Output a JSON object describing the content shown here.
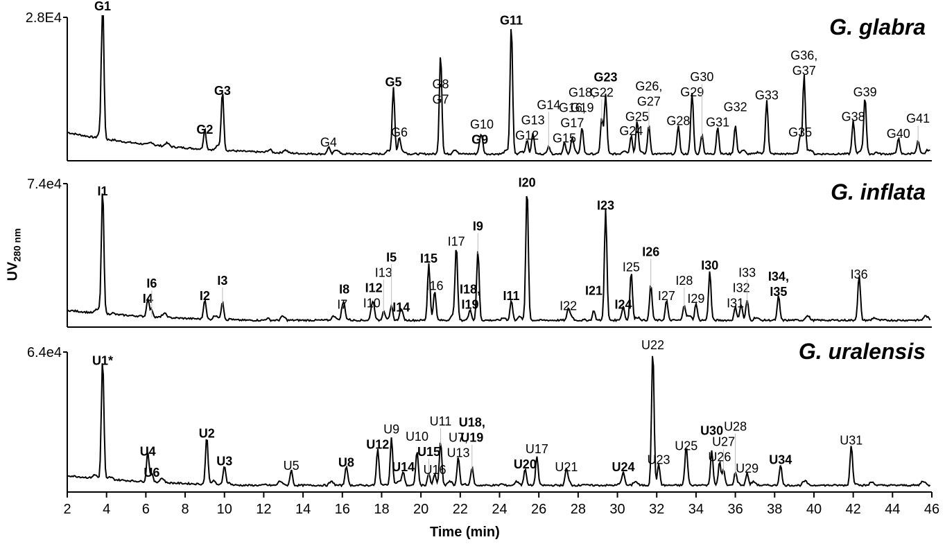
{
  "chart_data": {
    "type": "line",
    "title": "",
    "xlabel": "Time (min)",
    "ylabel": "UV280 nm",
    "ylabel_main": "UV",
    "ylabel_sub": "280 nm",
    "xlim": [
      2,
      46
    ],
    "xticks": [
      2,
      4,
      6,
      8,
      10,
      12,
      14,
      16,
      18,
      20,
      22,
      24,
      26,
      28,
      30,
      32,
      34,
      36,
      38,
      40,
      42,
      44,
      46
    ],
    "grid": false,
    "legend": "none",
    "panels": [
      {
        "name": "G. glabra",
        "ymax_label": "2.8E4",
        "ymax": 28000,
        "peaks": [
          {
            "label": "G1",
            "t": 3.8,
            "rel": 1.0,
            "bold": true
          },
          {
            "label": "G2",
            "t": 9.0,
            "rel": 0.14,
            "bold": true
          },
          {
            "label": "G3",
            "t": 9.9,
            "rel": 0.41,
            "bold": true
          },
          {
            "label": "G4",
            "t": 15.3,
            "rel": 0.05,
            "bold": false
          },
          {
            "label": "G5",
            "t": 18.6,
            "rel": 0.47,
            "bold": true
          },
          {
            "label": "G6",
            "t": 18.9,
            "rel": 0.12,
            "bold": false
          },
          {
            "label": "G7",
            "t": 21.0,
            "rel": 0.35,
            "bold": false
          },
          {
            "label": "G8",
            "t": 21.0,
            "rel": 0.35,
            "bold": false
          },
          {
            "label": "G9",
            "t": 23.0,
            "rel": 0.07,
            "bold": true
          },
          {
            "label": "G10",
            "t": 23.1,
            "rel": 0.11,
            "bold": false
          },
          {
            "label": "G11",
            "t": 24.6,
            "rel": 0.9,
            "bold": true
          },
          {
            "label": "G12",
            "t": 25.4,
            "rel": 0.1,
            "bold": false
          },
          {
            "label": "G13",
            "t": 25.7,
            "rel": 0.15,
            "bold": false
          },
          {
            "label": "G14",
            "t": 26.5,
            "rel": 0.06,
            "bold": false
          },
          {
            "label": "G15",
            "t": 27.3,
            "rel": 0.08,
            "bold": false
          },
          {
            "label": "G16, G17",
            "t": 27.7,
            "rel": 0.09,
            "bold": false
          },
          {
            "label": "G18, G19",
            "t": 28.2,
            "rel": 0.19,
            "bold": false
          },
          {
            "label": "G22",
            "t": 29.2,
            "rel": 0.25,
            "bold": false
          },
          {
            "label": "G23",
            "t": 29.4,
            "rel": 0.42,
            "bold": true
          },
          {
            "label": "G24",
            "t": 30.7,
            "rel": 0.13,
            "bold": false
          },
          {
            "label": "G25",
            "t": 31.0,
            "rel": 0.23,
            "bold": false
          },
          {
            "label": "G26, G27",
            "t": 31.6,
            "rel": 0.2,
            "bold": false
          },
          {
            "label": "G28",
            "t": 33.1,
            "rel": 0.2,
            "bold": false
          },
          {
            "label": "G29",
            "t": 33.8,
            "rel": 0.4,
            "bold": false
          },
          {
            "label": "G30",
            "t": 34.3,
            "rel": 0.14,
            "bold": false
          },
          {
            "label": "G31",
            "t": 35.1,
            "rel": 0.19,
            "bold": false
          },
          {
            "label": "G32",
            "t": 36.0,
            "rel": 0.2,
            "bold": false
          },
          {
            "label": "G33",
            "t": 37.6,
            "rel": 0.38,
            "bold": false
          },
          {
            "label": "G35",
            "t": 39.3,
            "rel": 0.12,
            "bold": false
          },
          {
            "label": "G36, G37",
            "t": 39.5,
            "rel": 0.55,
            "bold": false
          },
          {
            "label": "G38",
            "t": 42.0,
            "rel": 0.23,
            "bold": false
          },
          {
            "label": "G39",
            "t": 42.6,
            "rel": 0.4,
            "bold": false
          },
          {
            "label": "G40",
            "t": 44.3,
            "rel": 0.11,
            "bold": false
          },
          {
            "label": "G41",
            "t": 45.3,
            "rel": 0.09,
            "bold": false
          }
        ]
      },
      {
        "name": "G. inflata",
        "ymax_label": "7.4e4",
        "ymax": 74000,
        "peaks": [
          {
            "label": "I1",
            "t": 3.8,
            "rel": 0.87,
            "bold": true
          },
          {
            "label": "I4",
            "t": 6.1,
            "rel": 0.12,
            "bold": true
          },
          {
            "label": "I6",
            "t": 6.3,
            "rel": 0.05,
            "bold": true
          },
          {
            "label": "I2",
            "t": 9.0,
            "rel": 0.14,
            "bold": true
          },
          {
            "label": "I3",
            "t": 9.9,
            "rel": 0.13,
            "bold": true
          },
          {
            "label": "I7",
            "t": 16.0,
            "rel": 0.08,
            "bold": false
          },
          {
            "label": "I8",
            "t": 16.1,
            "rel": 0.09,
            "bold": true
          },
          {
            "label": "I10",
            "t": 17.5,
            "rel": 0.09,
            "bold": false
          },
          {
            "label": "I12",
            "t": 17.6,
            "rel": 0.09,
            "bold": true
          },
          {
            "label": "I13",
            "t": 18.1,
            "rel": 0.06,
            "bold": false
          },
          {
            "label": "I5",
            "t": 18.5,
            "rel": 0.1,
            "bold": true
          },
          {
            "label": "I14",
            "t": 19.0,
            "rel": 0.06,
            "bold": true
          },
          {
            "label": "I15",
            "t": 20.4,
            "rel": 0.4,
            "bold": true
          },
          {
            "label": "I16",
            "t": 20.7,
            "rel": 0.21,
            "bold": false
          },
          {
            "label": "I17",
            "t": 21.8,
            "rel": 0.52,
            "bold": false
          },
          {
            "label": "I18, I19",
            "t": 22.5,
            "rel": 0.08,
            "bold": true
          },
          {
            "label": "I9",
            "t": 22.9,
            "rel": 0.49,
            "bold": true
          },
          {
            "label": "I11",
            "t": 24.6,
            "rel": 0.14,
            "bold": true
          },
          {
            "label": "I20",
            "t": 25.4,
            "rel": 0.93,
            "bold": true
          },
          {
            "label": "I22",
            "t": 27.5,
            "rel": 0.07,
            "bold": false
          },
          {
            "label": "I21",
            "t": 28.8,
            "rel": 0.07,
            "bold": true
          },
          {
            "label": "I23",
            "t": 29.4,
            "rel": 0.77,
            "bold": true
          },
          {
            "label": "I24",
            "t": 30.3,
            "rel": 0.08,
            "bold": true
          },
          {
            "label": "I25",
            "t": 30.7,
            "rel": 0.34,
            "bold": false
          },
          {
            "label": "I26",
            "t": 31.7,
            "rel": 0.25,
            "bold": true
          },
          {
            "label": "I27",
            "t": 32.5,
            "rel": 0.14,
            "bold": false
          },
          {
            "label": "I28",
            "t": 33.4,
            "rel": 0.11,
            "bold": false
          },
          {
            "label": "I29",
            "t": 34.0,
            "rel": 0.12,
            "bold": false
          },
          {
            "label": "I30",
            "t": 34.7,
            "rel": 0.34,
            "bold": true
          },
          {
            "label": "I31",
            "t": 36.0,
            "rel": 0.09,
            "bold": false
          },
          {
            "label": "I32",
            "t": 36.3,
            "rel": 0.09,
            "bold": false
          },
          {
            "label": "I33",
            "t": 36.6,
            "rel": 0.14,
            "bold": false
          },
          {
            "label": "I34, I35",
            "t": 38.2,
            "rel": 0.17,
            "bold": true
          },
          {
            "label": "I36",
            "t": 42.3,
            "rel": 0.29,
            "bold": false
          }
        ]
      },
      {
        "name": "G. uralensis",
        "ymax_label": "6.4e4",
        "ymax": 64000,
        "peaks": [
          {
            "label": "U1*",
            "t": 3.8,
            "rel": 0.86,
            "bold": true
          },
          {
            "label": "U4",
            "t": 6.1,
            "rel": 0.21,
            "bold": true
          },
          {
            "label": "U6",
            "t": 6.3,
            "rel": 0.06,
            "bold": true
          },
          {
            "label": "U2",
            "t": 9.1,
            "rel": 0.34,
            "bold": true
          },
          {
            "label": "U3",
            "t": 10.0,
            "rel": 0.14,
            "bold": true
          },
          {
            "label": "U5",
            "t": 13.4,
            "rel": 0.11,
            "bold": false
          },
          {
            "label": "U8",
            "t": 16.2,
            "rel": 0.13,
            "bold": true
          },
          {
            "label": "U12",
            "t": 17.8,
            "rel": 0.26,
            "bold": true
          },
          {
            "label": "U9",
            "t": 18.5,
            "rel": 0.34,
            "bold": false
          },
          {
            "label": "U14",
            "t": 19.1,
            "rel": 0.1,
            "bold": true
          },
          {
            "label": "U15",
            "t": 20.4,
            "rel": 0.09,
            "bold": true
          },
          {
            "label": "U10",
            "t": 19.8,
            "rel": 0.25,
            "bold": false
          },
          {
            "label": "U16",
            "t": 20.7,
            "rel": 0.08,
            "bold": false
          },
          {
            "label": "U11",
            "t": 21.0,
            "rel": 0.31,
            "bold": false
          },
          {
            "label": "U7, U13",
            "t": 21.9,
            "rel": 0.2,
            "bold": false
          },
          {
            "label": "U18, U19",
            "t": 22.6,
            "rel": 0.13,
            "bold": true
          },
          {
            "label": "U20",
            "t": 25.3,
            "rel": 0.12,
            "bold": true
          },
          {
            "label": "U17",
            "t": 25.9,
            "rel": 0.21,
            "bold": false
          },
          {
            "label": "U21",
            "t": 27.4,
            "rel": 0.1,
            "bold": false
          },
          {
            "label": "U24",
            "t": 30.3,
            "rel": 0.1,
            "bold": true
          },
          {
            "label": "U22",
            "t": 31.8,
            "rel": 0.97,
            "bold": false
          },
          {
            "label": "U23",
            "t": 32.1,
            "rel": 0.15,
            "bold": false
          },
          {
            "label": "U25",
            "t": 33.5,
            "rel": 0.25,
            "bold": false
          },
          {
            "label": "U30",
            "t": 34.8,
            "rel": 0.25,
            "bold": true
          },
          {
            "label": "U26",
            "t": 35.2,
            "rel": 0.17,
            "bold": false
          },
          {
            "label": "U27",
            "t": 35.4,
            "rel": 0.11,
            "bold": false
          },
          {
            "label": "U28",
            "t": 36.0,
            "rel": 0.09,
            "bold": false
          },
          {
            "label": "U29",
            "t": 36.6,
            "rel": 0.09,
            "bold": false
          },
          {
            "label": "U34",
            "t": 38.3,
            "rel": 0.15,
            "bold": true
          },
          {
            "label": "U31",
            "t": 41.9,
            "rel": 0.29,
            "bold": false
          }
        ]
      }
    ]
  },
  "axes": {
    "ylabel_main": "UV",
    "ylabel_sub": "280 nm",
    "xlabel": "Time (min)"
  }
}
